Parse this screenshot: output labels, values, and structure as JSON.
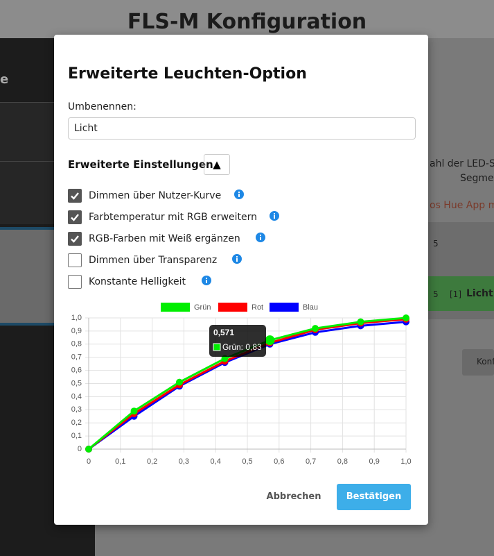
{
  "header": {
    "title": "FLS-M Konfiguration"
  },
  "background": {
    "texts": [
      "e",
      "ahl der LED-S",
      "Segme",
      "os Hue App m",
      "5",
      "5",
      "[1]",
      "Licht",
      "Konf"
    ]
  },
  "modal": {
    "title": "Erweiterte Leuchten-Option",
    "rename_label": "Umbenennen:",
    "rename_value": "Licht",
    "section_title": "Erweiterte Einstellungen",
    "toggle_button": "▲",
    "options": [
      {
        "label": "Dimmen über Nutzer-Kurve",
        "checked": true
      },
      {
        "label": "Farbtemperatur mit RGB erweitern",
        "checked": true
      },
      {
        "label": "RGB-Farben mit Weiß ergänzen",
        "checked": true
      },
      {
        "label": "Dimmen über Transparenz",
        "checked": false
      },
      {
        "label": "Konstante Helligkeit",
        "checked": false
      }
    ],
    "cancel": "Abbrechen",
    "confirm": "Bestätigen"
  },
  "chart_data": {
    "type": "line",
    "x": [
      0,
      0.143,
      0.286,
      0.429,
      0.571,
      0.714,
      0.857,
      1
    ],
    "series": [
      {
        "name": "Grün",
        "color": "#00ee00",
        "values": [
          0,
          0.29,
          0.51,
          0.69,
          0.83,
          0.92,
          0.97,
          1.0
        ]
      },
      {
        "name": "Rot",
        "color": "#ff0000",
        "values": [
          0,
          0.27,
          0.49,
          0.67,
          0.81,
          0.91,
          0.96,
          0.99
        ]
      },
      {
        "name": "Blau",
        "color": "#0000ff",
        "values": [
          0,
          0.25,
          0.48,
          0.66,
          0.8,
          0.89,
          0.94,
          0.97
        ]
      }
    ],
    "xlim": [
      0,
      1
    ],
    "ylim": [
      0,
      1
    ],
    "xticks": [
      0,
      {
        "value": 0.1,
        "label": "0,1"
      },
      {
        "value": 0.2,
        "label": "0,2"
      },
      {
        "value": 0.3,
        "label": "0,3"
      },
      {
        "value": 0.4,
        "label": "0,4"
      },
      {
        "value": 0.5,
        "label": "0,5"
      },
      {
        "value": 0.6,
        "label": "0,6"
      },
      {
        "value": 0.7,
        "label": "0,7"
      },
      {
        "value": 0.8,
        "label": "0,8"
      },
      {
        "value": 0.9,
        "label": "0,9"
      },
      {
        "value": 1.0,
        "label": "1,0"
      }
    ],
    "yticks": [
      0,
      {
        "value": 0.1,
        "label": "0,1"
      },
      {
        "value": 0.2,
        "label": "0,2"
      },
      {
        "value": 0.3,
        "label": "0,3"
      },
      {
        "value": 0.4,
        "label": "0,4"
      },
      {
        "value": 0.5,
        "label": "0,5"
      },
      {
        "value": 0.6,
        "label": "0,6"
      },
      {
        "value": 0.7,
        "label": "0,7"
      },
      {
        "value": 0.8,
        "label": "0,8"
      },
      {
        "value": 0.9,
        "label": "0,9"
      },
      {
        "value": 1.0,
        "label": "1,0"
      }
    ],
    "grid": true,
    "legend": "top",
    "tooltip": {
      "title": "0,571",
      "text": "Grün: 0,83"
    }
  }
}
